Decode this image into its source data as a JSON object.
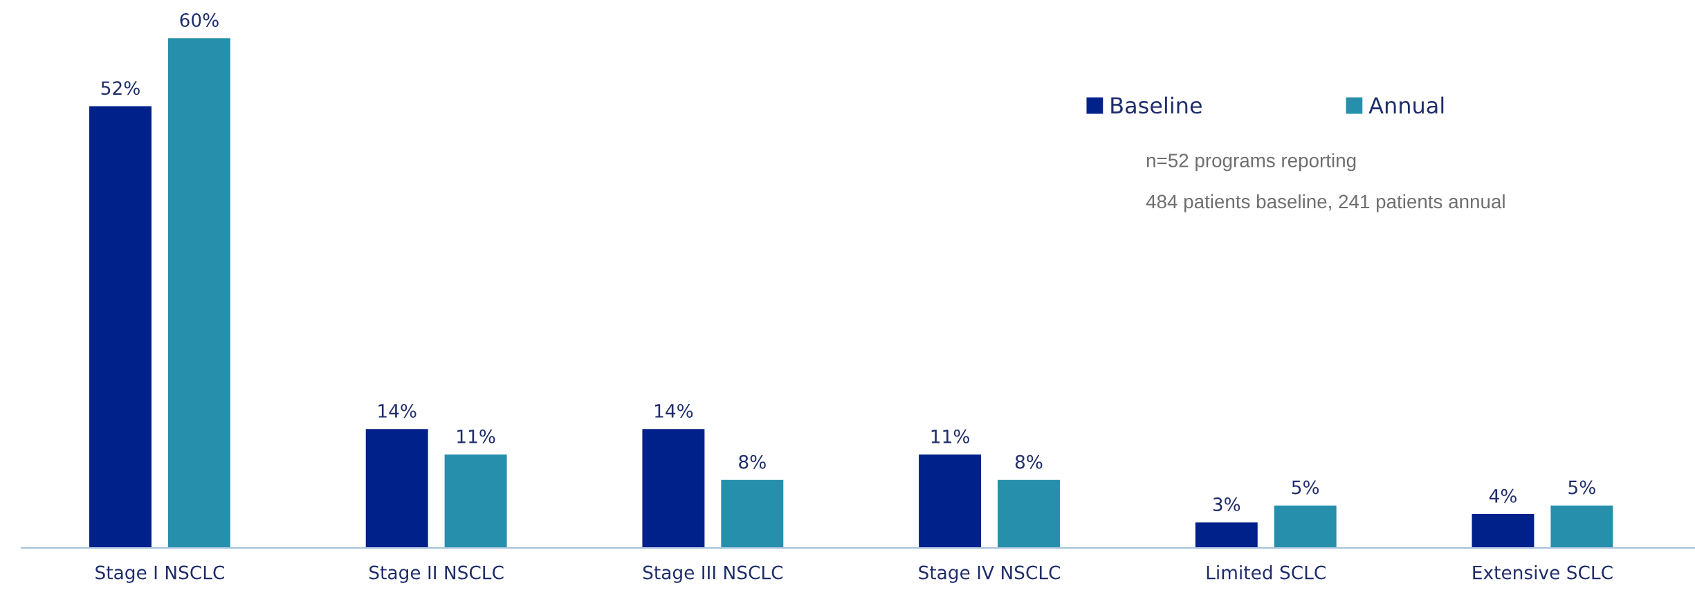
{
  "chart_data": {
    "type": "bar",
    "categories": [
      "Stage I NSCLC",
      "Stage II NSCLC",
      "Stage III NSCLC",
      "Stage IV NSCLC",
      "Limited SCLC",
      "Extensive SCLC"
    ],
    "series": [
      {
        "name": "Baseline",
        "color": "#00208a",
        "values": [
          52,
          14,
          14,
          11,
          3,
          4
        ],
        "value_labels": [
          "52%",
          "14%",
          "14%",
          "11%",
          "3%",
          "4%"
        ]
      },
      {
        "name": "Annual",
        "color": "#268fab",
        "values": [
          60,
          11,
          8,
          8,
          5,
          5
        ],
        "value_labels": [
          "60%",
          "11%",
          "8%",
          "8%",
          "5%",
          "5%"
        ]
      }
    ],
    "legend": "top right",
    "grid": false,
    "annotations": [
      "n=52 programs reporting",
      "484 patients baseline, 241 patients annual"
    ]
  }
}
